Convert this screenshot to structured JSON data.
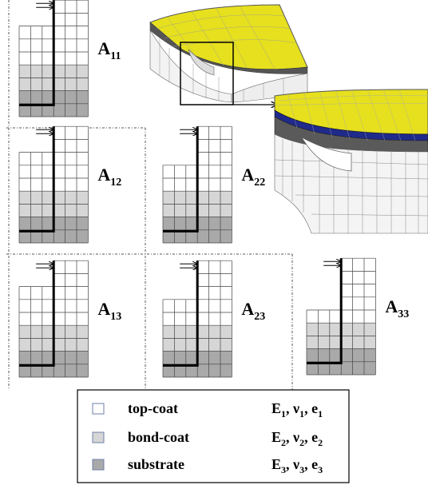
{
  "colors": {
    "top_coat": "#ffffff",
    "bond_coat": "#d6d6d6",
    "substrate": "#a9a9a9",
    "grid_line": "#444444",
    "mesh_yellow": "#e6e01e",
    "mesh_dark": "#555555",
    "mesh_blue": "#1f2a8a"
  },
  "cells": [
    {
      "id": "A11",
      "main": "A",
      "sub": "11",
      "col": 0,
      "row": 0
    },
    {
      "id": "A12",
      "main": "A",
      "sub": "12",
      "col": 0,
      "row": 1
    },
    {
      "id": "A22",
      "main": "A",
      "sub": "22",
      "col": 1,
      "row": 1
    },
    {
      "id": "A13",
      "main": "A",
      "sub": "13",
      "col": 0,
      "row": 2
    },
    {
      "id": "A23",
      "main": "A",
      "sub": "23",
      "col": 1,
      "row": 2
    },
    {
      "id": "A33",
      "main": "A",
      "sub": "33",
      "col": 2,
      "row": 2
    }
  ],
  "legend": {
    "items": [
      {
        "name": "top-coat",
        "swatch": "top_coat",
        "props": [
          {
            "s": "E",
            "i": "1"
          },
          {
            "s": "ν",
            "i": "1"
          },
          {
            "s": "e",
            "i": "1"
          }
        ]
      },
      {
        "name": "bond-coat",
        "swatch": "bond_coat",
        "props": [
          {
            "s": "E",
            "i": "2"
          },
          {
            "s": "ν",
            "i": "2"
          },
          {
            "s": "e",
            "i": "2"
          }
        ]
      },
      {
        "name": "substrate",
        "swatch": "substrate",
        "props": [
          {
            "s": "E",
            "i": "3"
          },
          {
            "s": "ν",
            "i": "3"
          },
          {
            "s": "e",
            "i": "3"
          }
        ]
      }
    ]
  }
}
